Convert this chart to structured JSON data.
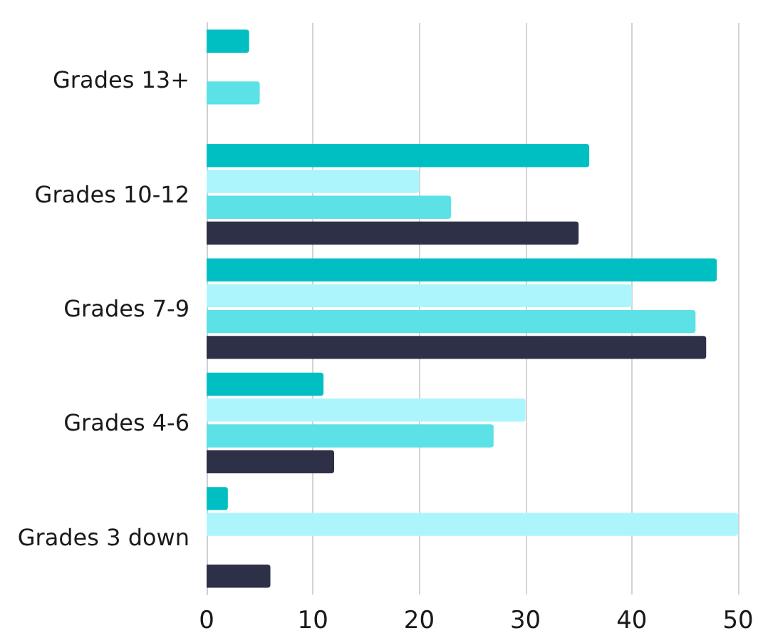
{
  "chart_data": {
    "type": "bar",
    "orientation": "horizontal",
    "categories": [
      "Grades 13+",
      "Grades 10-12",
      "Grades 7-9",
      "Grades 4-6",
      "Grades 3 down"
    ],
    "series": [
      {
        "color": "#00bfc3",
        "values": [
          4,
          36,
          48,
          11,
          2
        ]
      },
      {
        "color": "#adf5fd",
        "values": [
          null,
          20,
          40,
          30,
          50
        ]
      },
      {
        "color": "#5ce1e6",
        "values": [
          5,
          23,
          46,
          27,
          null
        ]
      },
      {
        "color": "#2e3047",
        "values": [
          null,
          35,
          47,
          12,
          6
        ]
      }
    ],
    "xlim": [
      0,
      50
    ],
    "xticks": [
      0,
      10,
      20,
      30,
      40,
      50
    ],
    "grid": "x"
  }
}
